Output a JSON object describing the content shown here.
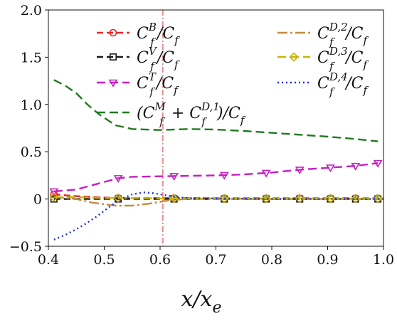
{
  "chart_data": {
    "type": "line",
    "xlabel": {
      "main": "x/x",
      "sub": "e"
    },
    "xlim": [
      0.4,
      1.0
    ],
    "ylim": [
      -0.5,
      2.0
    ],
    "xticks": [
      0.4,
      0.5,
      0.6,
      0.7,
      0.8,
      0.9,
      1.0
    ],
    "xtick_labels": [
      "0.4",
      "0.5",
      "0.6",
      "0.7",
      "0.8",
      "0.9",
      "1.0"
    ],
    "yticks": [
      -0.5,
      0.0,
      0.5,
      1.0,
      1.5,
      2.0
    ],
    "ytick_labels": [
      "−0.5",
      "0",
      "0.5",
      "1.0",
      "1.5",
      "2.0"
    ],
    "grid": false,
    "vertical_reference_line": {
      "x": 0.605,
      "color": "#d9303a",
      "style": "dashdot"
    },
    "legend_position": "top",
    "series": [
      {
        "name": "C_f^B/C_f",
        "label": {
          "pre": "C",
          "sup": "B",
          "sub": "f",
          "post": "/C",
          "post_sub": "f"
        },
        "color": "#e3262b",
        "dash": "9,5",
        "marker": "circle",
        "x": [
          0.41,
          0.45,
          0.5,
          0.53,
          0.56,
          0.6,
          0.63,
          0.7,
          0.8,
          0.9,
          1.0
        ],
        "y": [
          0.05,
          0.03,
          0.015,
          0.01,
          0.01,
          0.01,
          0.01,
          0.008,
          0.008,
          0.008,
          0.008
        ],
        "marker_x": [
          0.41,
          0.525,
          0.625,
          0.715,
          0.79,
          0.85,
          0.905,
          0.95,
          0.99
        ]
      },
      {
        "name": "C_f^V/C_f",
        "label": {
          "pre": "C",
          "sup": "V",
          "sub": "f",
          "post": "/C",
          "post_sub": "f"
        },
        "color": "#1a1a1a",
        "dash": "9,5",
        "marker": "square",
        "x": [
          0.41,
          0.45,
          0.5,
          0.55,
          0.6,
          0.7,
          0.8,
          0.9,
          1.0
        ],
        "y": [
          0.0,
          0.0,
          0.0,
          0.0,
          0.0,
          0.0,
          0.0,
          0.0,
          0.0
        ],
        "marker_x": [
          0.41,
          0.525,
          0.625,
          0.715,
          0.79,
          0.85,
          0.905,
          0.95,
          0.99
        ]
      },
      {
        "name": "C_f^T/C_f",
        "label": {
          "pre": "C",
          "sup": "T",
          "sub": "f",
          "post": "/C",
          "post_sub": "f"
        },
        "color": "#c41ec4",
        "dash": "12,6",
        "marker": "triangle-down",
        "x": [
          0.41,
          0.45,
          0.5,
          0.525,
          0.55,
          0.6,
          0.65,
          0.7,
          0.75,
          0.8,
          0.85,
          0.9,
          0.95,
          0.99
        ],
        "y": [
          0.08,
          0.1,
          0.18,
          0.22,
          0.235,
          0.24,
          0.245,
          0.25,
          0.26,
          0.28,
          0.31,
          0.33,
          0.35,
          0.38
        ],
        "marker_x": [
          0.41,
          0.525,
          0.625,
          0.715,
          0.79,
          0.85,
          0.905,
          0.95,
          0.99
        ]
      },
      {
        "name": "(C_f^M + C_f^{D,1})/C_f",
        "label": {
          "pre": "(C",
          "sup": "M",
          "sub": "f",
          "mid": " + C",
          "sup2": "D,1",
          "sub2": "f",
          "post": ")/C",
          "post_sub": "f"
        },
        "color": "#1f7a1f",
        "dash": "12,6",
        "marker": "none",
        "x": [
          0.41,
          0.43,
          0.45,
          0.47,
          0.49,
          0.5,
          0.52,
          0.55,
          0.6,
          0.65,
          0.7,
          0.75,
          0.8,
          0.85,
          0.9,
          0.95,
          0.99
        ],
        "y": [
          1.26,
          1.2,
          1.12,
          1.0,
          0.9,
          0.86,
          0.78,
          0.74,
          0.73,
          0.74,
          0.735,
          0.72,
          0.7,
          0.68,
          0.66,
          0.635,
          0.61
        ],
        "marker_x": []
      },
      {
        "name": "C_f^{D,2}/C_f",
        "label": {
          "pre": "C",
          "sup": "D,2",
          "sub": "f",
          "post": "/C",
          "post_sub": "f"
        },
        "color": "#c48a3c",
        "dash": "14,4,3,4",
        "marker": "none",
        "x": [
          0.41,
          0.45,
          0.48,
          0.52,
          0.55,
          0.58,
          0.6,
          0.62,
          0.65,
          0.7,
          0.8,
          0.9,
          1.0
        ],
        "y": [
          0.02,
          0.0,
          -0.04,
          -0.07,
          -0.07,
          -0.05,
          -0.03,
          -0.01,
          0.0,
          0.0,
          0.0,
          0.0,
          0.0
        ],
        "marker_x": []
      },
      {
        "name": "C_f^{D,3}/C_f",
        "label": {
          "pre": "C",
          "sup": "D,3",
          "sub": "f",
          "post": "/C",
          "post_sub": "f"
        },
        "color": "#c8b400",
        "dash": "12,6",
        "marker": "diamond",
        "x": [
          0.41,
          0.45,
          0.5,
          0.55,
          0.6,
          0.7,
          0.8,
          0.9,
          1.0
        ],
        "y": [
          0.02,
          0.02,
          0.01,
          0.01,
          0.005,
          0.005,
          0.005,
          0.005,
          0.005
        ],
        "marker_x": [
          0.41,
          0.525,
          0.625,
          0.715,
          0.79,
          0.85,
          0.905,
          0.95,
          0.99
        ]
      },
      {
        "name": "C_f^{D,4}/C_f",
        "label": {
          "pre": "C",
          "sup": "D,4",
          "sub": "f",
          "post": "/C",
          "post_sub": "f"
        },
        "color": "#1f2fd4",
        "dash": "2,4",
        "marker": "none",
        "x": [
          0.41,
          0.43,
          0.45,
          0.47,
          0.49,
          0.51,
          0.53,
          0.55,
          0.57,
          0.59,
          0.61,
          0.63,
          0.65,
          0.7,
          0.8,
          0.9,
          1.0
        ],
        "y": [
          -0.43,
          -0.38,
          -0.32,
          -0.25,
          -0.17,
          -0.08,
          0.0,
          0.05,
          0.07,
          0.06,
          0.04,
          0.02,
          0.01,
          0.005,
          0.0,
          0.0,
          0.0
        ],
        "marker_x": []
      }
    ]
  }
}
